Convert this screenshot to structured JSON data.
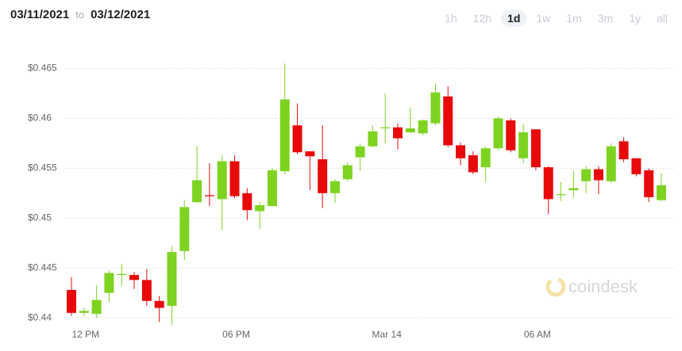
{
  "header": {
    "from": "03/11/2021",
    "separator": "to",
    "to": "03/12/2021"
  },
  "ranges": [
    "1h",
    "12h",
    "1d",
    "1w",
    "1m",
    "3m",
    "1y",
    "all"
  ],
  "active_range": "1d",
  "watermark": "coindesk",
  "chart_data": {
    "type": "candlestick",
    "categories": [
      null,
      "12 PM",
      null,
      null,
      null,
      null,
      null,
      null,
      null,
      null,
      null,
      null,
      null,
      "06 PM",
      null,
      null,
      null,
      null,
      null,
      null,
      null,
      null,
      null,
      null,
      null,
      "Mar 14",
      null,
      null,
      null,
      null,
      null,
      null,
      null,
      null,
      null,
      null,
      null,
      "06 AM",
      null,
      null,
      null,
      null,
      null,
      null,
      null,
      null,
      null,
      null
    ],
    "open": [
      0.4428,
      0.4405,
      0.4404,
      0.4425,
      0.4443,
      0.4443,
      0.4438,
      0.4417,
      0.4412,
      0.4467,
      0.4516,
      0.4523,
      0.4519,
      0.4557,
      0.4525,
      0.4507,
      0.4512,
      0.4547,
      0.4593,
      0.4567,
      0.4559,
      0.4525,
      0.4539,
      0.4561,
      0.4572,
      0.459,
      0.4591,
      0.4586,
      0.4585,
      0.4595,
      0.4622,
      0.4573,
      0.4563,
      0.4551,
      0.457,
      0.4598,
      0.456,
      0.4589,
      0.4551,
      0.4523,
      0.4528,
      0.4537,
      0.4549,
      0.4537,
      0.4577,
      0.456,
      0.4548,
      0.4518
    ],
    "high": [
      0.4441,
      0.441,
      0.4433,
      0.4448,
      0.4454,
      0.4446,
      0.4449,
      0.4422,
      0.4472,
      0.4518,
      0.4572,
      0.4555,
      0.4563,
      0.4563,
      0.453,
      0.4516,
      0.455,
      0.4655,
      0.4615,
      0.4567,
      0.4593,
      0.4539,
      0.4556,
      0.4575,
      0.4593,
      0.4625,
      0.4595,
      0.4611,
      0.4599,
      0.4635,
      0.4632,
      0.4576,
      0.4567,
      0.4572,
      0.4602,
      0.46,
      0.4594,
      0.4589,
      0.4552,
      0.4536,
      0.4547,
      0.4552,
      0.4552,
      0.4575,
      0.4581,
      0.456,
      0.455,
      0.4545
    ],
    "low": [
      0.4402,
      0.4402,
      0.44,
      0.4416,
      0.4432,
      0.4429,
      0.4412,
      0.4396,
      0.4393,
      0.4458,
      0.4515,
      0.4512,
      0.4488,
      0.452,
      0.4498,
      0.4489,
      0.4512,
      0.4544,
      0.4564,
      0.4528,
      0.451,
      0.4515,
      0.4537,
      0.4548,
      0.4571,
      0.4575,
      0.4569,
      0.4585,
      0.4583,
      0.4593,
      0.4571,
      0.4553,
      0.4544,
      0.4536,
      0.4568,
      0.4566,
      0.4555,
      0.4548,
      0.4504,
      0.4517,
      0.4521,
      0.4525,
      0.4524,
      0.4535,
      0.4556,
      0.4542,
      0.4516,
      0.4517
    ],
    "close": [
      0.4405,
      0.4407,
      0.4418,
      0.4445,
      0.4444,
      0.4438,
      0.4417,
      0.441,
      0.4466,
      0.4511,
      0.4538,
      0.4522,
      0.4557,
      0.4522,
      0.4508,
      0.4513,
      0.4548,
      0.4619,
      0.4566,
      0.4562,
      0.4525,
      0.4537,
      0.4553,
      0.4572,
      0.4587,
      0.4591,
      0.458,
      0.459,
      0.4598,
      0.4626,
      0.4573,
      0.456,
      0.4546,
      0.457,
      0.46,
      0.4568,
      0.4586,
      0.4551,
      0.4519,
      0.4524,
      0.453,
      0.4549,
      0.4538,
      0.4572,
      0.4559,
      0.4544,
      0.4521,
      0.4533
    ],
    "up_color": "#7ed321",
    "down_color": "#e80a0a",
    "ylim": [
      0.4393,
      0.4671
    ],
    "yticks": [
      {
        "value": 0.44,
        "label": "$0.44"
      },
      {
        "value": 0.445,
        "label": "$0.445"
      },
      {
        "value": 0.45,
        "label": "$0.45"
      },
      {
        "value": 0.455,
        "label": "$0.455"
      },
      {
        "value": 0.46,
        "label": "$0.46"
      },
      {
        "value": 0.465,
        "label": "$0.465"
      }
    ],
    "grid": true
  }
}
